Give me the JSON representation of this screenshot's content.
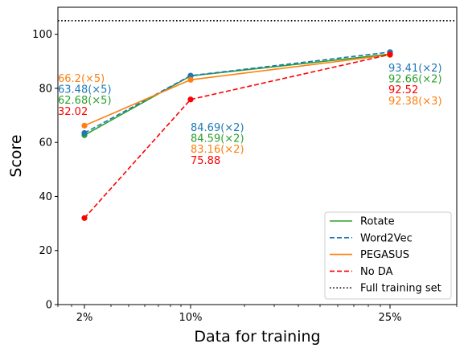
{
  "chart_data": {
    "type": "line",
    "xlabel": "Data for training",
    "ylabel": "Score",
    "ylim": [
      0,
      110
    ],
    "yticks": [
      0,
      20,
      40,
      60,
      80,
      100
    ],
    "ytick_labels": [
      "0",
      "20",
      "40",
      "60",
      "80",
      "100"
    ],
    "categories": [
      "2%",
      "10%",
      "25%"
    ],
    "reference_line": {
      "name": "Full training set",
      "value": 105,
      "style": "dotted",
      "color": "#000000"
    },
    "series": [
      {
        "name": "Rotate",
        "color": "#2ca02c",
        "style": "solid",
        "values": [
          62.68,
          84.59,
          92.66
        ]
      },
      {
        "name": "Word2Vec",
        "color": "#1f77b4",
        "style": "dashed",
        "values": [
          63.48,
          84.69,
          93.41
        ]
      },
      {
        "name": "PEGASUS",
        "color": "#ff7f0e",
        "style": "solid",
        "values": [
          66.2,
          83.16,
          92.38
        ]
      },
      {
        "name": "No DA",
        "color": "#ff0000",
        "style": "dashed",
        "values": [
          32.02,
          75.88,
          92.52
        ]
      }
    ],
    "annotations": [
      {
        "category": "2%",
        "lines": [
          {
            "text": "66.2(×5)",
            "color": "#ff7f0e"
          },
          {
            "text": "63.48(×5)",
            "color": "#1f77b4"
          },
          {
            "text": "62.68(×5)",
            "color": "#2ca02c"
          },
          {
            "text": "32.02",
            "color": "#ff0000"
          }
        ]
      },
      {
        "category": "10%",
        "lines": [
          {
            "text": "84.69(×2)",
            "color": "#1f77b4"
          },
          {
            "text": "84.59(×2)",
            "color": "#2ca02c"
          },
          {
            "text": "83.16(×2)",
            "color": "#ff7f0e"
          },
          {
            "text": "75.88",
            "color": "#ff0000"
          }
        ]
      },
      {
        "category": "25%",
        "lines": [
          {
            "text": "93.41(×2)",
            "color": "#1f77b4"
          },
          {
            "text": "92.66(×2)",
            "color": "#2ca02c"
          },
          {
            "text": "92.52",
            "color": "#ff0000"
          },
          {
            "text": "92.38(×3)",
            "color": "#ff7f0e"
          }
        ]
      }
    ],
    "legend_position": "bottom-right",
    "grid": false
  }
}
